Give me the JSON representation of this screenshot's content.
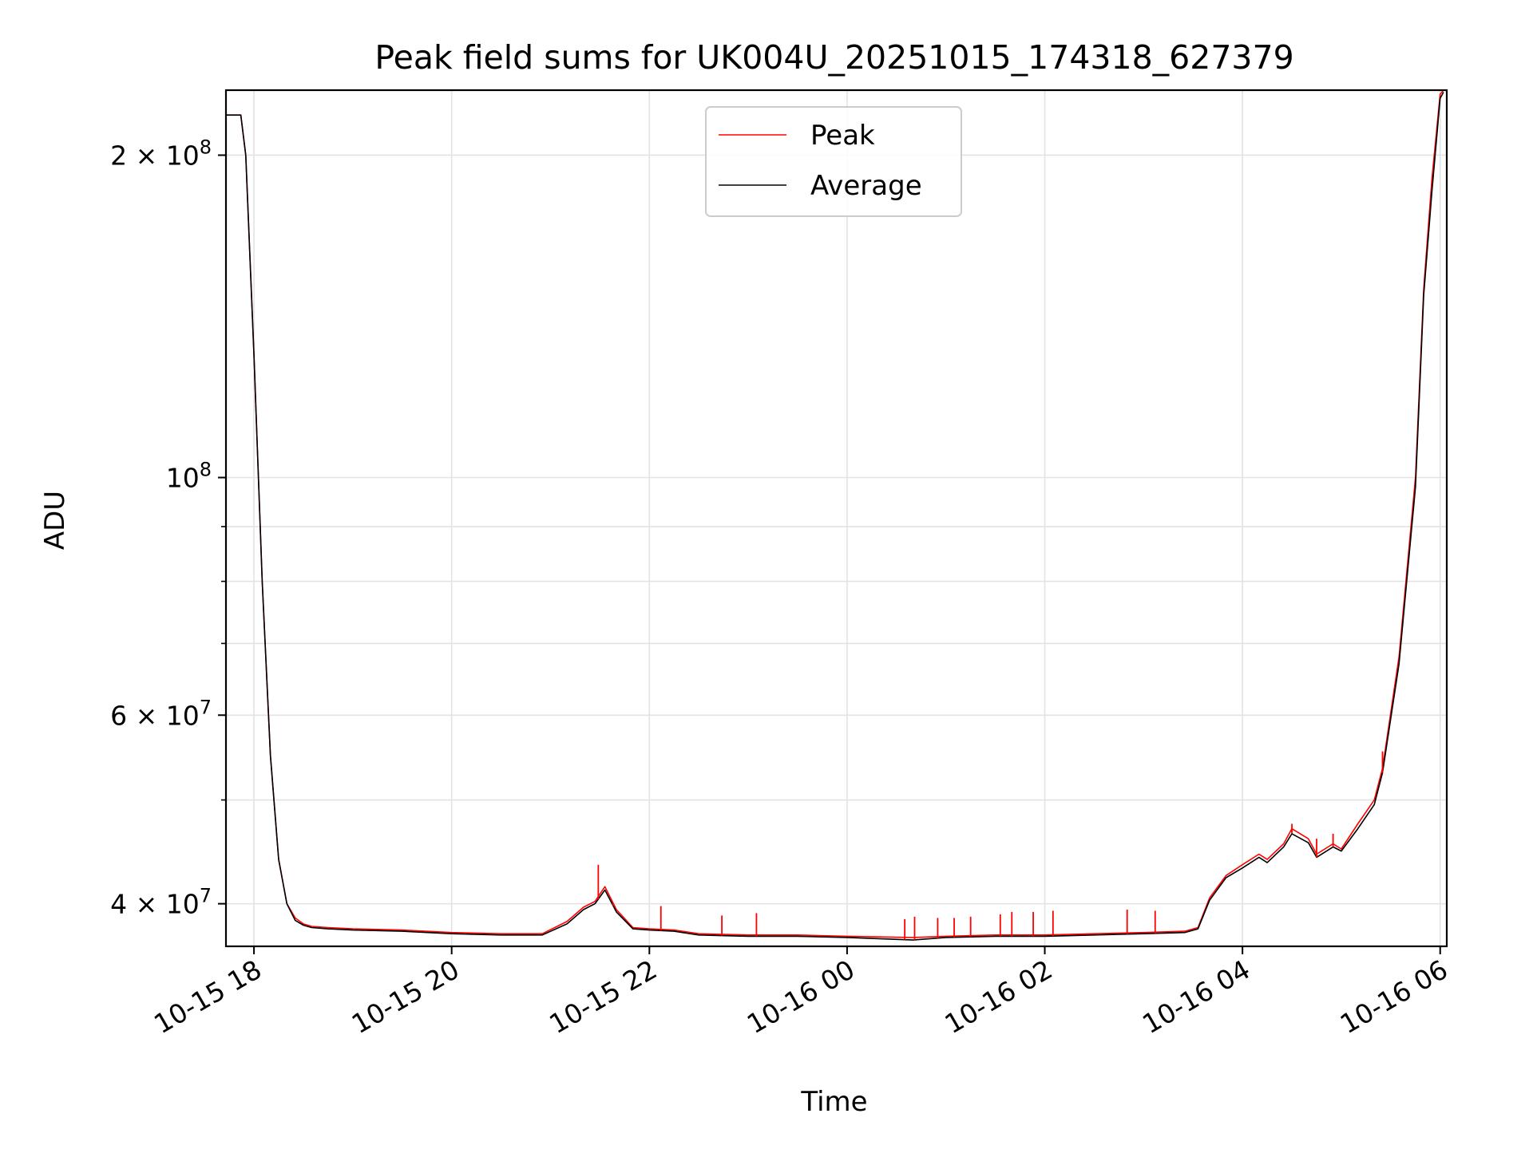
{
  "chart_data": {
    "type": "line",
    "title": "Peak field sums for UK004U_20251015_174318_627379",
    "xlabel": "Time",
    "ylabel": "ADU",
    "x_scale": "time",
    "y_scale": "log",
    "xlim": [
      "2025-10-15 17:43",
      "2025-10-16 06:04"
    ],
    "ylim": [
      36500000,
      230000000
    ],
    "x_ticks": [
      {
        "value": "2025-10-15 18:00",
        "label": "10-15 18"
      },
      {
        "value": "2025-10-15 20:00",
        "label": "10-15 20"
      },
      {
        "value": "2025-10-15 22:00",
        "label": "10-15 22"
      },
      {
        "value": "2025-10-16 00:00",
        "label": "10-16 00"
      },
      {
        "value": "2025-10-16 02:00",
        "label": "10-16 02"
      },
      {
        "value": "2025-10-16 04:00",
        "label": "10-16 04"
      },
      {
        "value": "2025-10-16 06:00",
        "label": "10-16 06"
      }
    ],
    "y_ticks": [
      {
        "value": 40000000,
        "base": "4",
        "exp": "7"
      },
      {
        "value": 60000000,
        "base": "6",
        "exp": "7"
      },
      {
        "value": 100000000,
        "base": "",
        "exp": "8"
      },
      {
        "value": 200000000,
        "base": "2",
        "exp": "8"
      }
    ],
    "y_minor_ticks": [
      50000000,
      70000000,
      80000000,
      90000000
    ],
    "grid": true,
    "legend": {
      "position": "upper center"
    },
    "series": [
      {
        "name": "Peak",
        "color": "#ff0000",
        "x": [
          "2025-10-15 17:43",
          "2025-10-15 17:52",
          "2025-10-15 17:55",
          "2025-10-15 18:00",
          "2025-10-15 18:05",
          "2025-10-15 18:10",
          "2025-10-15 18:15",
          "2025-10-15 18:20",
          "2025-10-15 18:25",
          "2025-10-15 18:30",
          "2025-10-15 18:35",
          "2025-10-15 18:45",
          "2025-10-15 19:00",
          "2025-10-15 19:30",
          "2025-10-15 20:00",
          "2025-10-15 20:30",
          "2025-10-15 20:55",
          "2025-10-15 21:10",
          "2025-10-15 21:20",
          "2025-10-15 21:27",
          "2025-10-15 21:33",
          "2025-10-15 21:40",
          "2025-10-15 21:50",
          "2025-10-15 22:00",
          "2025-10-15 22:15",
          "2025-10-15 22:30",
          "2025-10-15 23:00",
          "2025-10-15 23:30",
          "2025-10-16 00:00",
          "2025-10-16 00:40",
          "2025-10-16 01:00",
          "2025-10-16 01:30",
          "2025-10-16 02:00",
          "2025-10-16 02:30",
          "2025-10-16 03:00",
          "2025-10-16 03:25",
          "2025-10-16 03:33",
          "2025-10-16 03:40",
          "2025-10-16 03:50",
          "2025-10-16 04:00",
          "2025-10-16 04:10",
          "2025-10-16 04:15",
          "2025-10-16 04:25",
          "2025-10-16 04:30",
          "2025-10-16 04:40",
          "2025-10-16 04:45",
          "2025-10-16 04:55",
          "2025-10-16 05:00",
          "2025-10-16 05:10",
          "2025-10-16 05:20",
          "2025-10-16 05:25",
          "2025-10-16 05:35",
          "2025-10-16 05:45",
          "2025-10-16 05:50",
          "2025-10-16 05:55",
          "2025-10-16 06:00",
          "2025-10-16 06:02"
        ],
        "values": [
          218000000,
          218000000,
          200000000,
          130000000,
          80000000,
          55000000,
          44000000,
          40000000,
          38800000,
          38300000,
          38100000,
          38000000,
          37900000,
          37800000,
          37600000,
          37500000,
          37500000,
          38500000,
          39700000,
          40200000,
          41500000,
          39500000,
          38000000,
          37900000,
          37800000,
          37500000,
          37400000,
          37400000,
          37300000,
          37200000,
          37300000,
          37400000,
          37400000,
          37500000,
          37600000,
          37700000,
          38000000,
          40500000,
          42500000,
          43500000,
          44500000,
          44000000,
          45500000,
          47000000,
          46000000,
          44500000,
          45500000,
          45000000,
          47500000,
          50000000,
          53500000,
          68000000,
          100000000,
          150000000,
          190000000,
          228000000,
          230000000
        ],
        "spikes": [
          {
            "x": "2025-10-15 21:29",
            "y": 43500000
          },
          {
            "x": "2025-10-15 21:38",
            "y": 40000000
          },
          {
            "x": "2025-10-15 22:07",
            "y": 39800000
          },
          {
            "x": "2025-10-15 22:44",
            "y": 39000000
          },
          {
            "x": "2025-10-15 23:05",
            "y": 39200000
          },
          {
            "x": "2025-10-16 00:35",
            "y": 38700000
          },
          {
            "x": "2025-10-16 00:41",
            "y": 38900000
          },
          {
            "x": "2025-10-16 00:55",
            "y": 38800000
          },
          {
            "x": "2025-10-16 01:05",
            "y": 38800000
          },
          {
            "x": "2025-10-16 01:15",
            "y": 38900000
          },
          {
            "x": "2025-10-16 01:33",
            "y": 39100000
          },
          {
            "x": "2025-10-16 01:40",
            "y": 39300000
          },
          {
            "x": "2025-10-16 01:53",
            "y": 39300000
          },
          {
            "x": "2025-10-16 02:05",
            "y": 39400000
          },
          {
            "x": "2025-10-16 02:50",
            "y": 39500000
          },
          {
            "x": "2025-10-16 03:07",
            "y": 39400000
          },
          {
            "x": "2025-10-16 04:30",
            "y": 47500000
          },
          {
            "x": "2025-10-16 04:45",
            "y": 46000000
          },
          {
            "x": "2025-10-16 04:55",
            "y": 46500000
          },
          {
            "x": "2025-10-16 05:25",
            "y": 55500000
          }
        ]
      },
      {
        "name": "Average",
        "color": "#000000",
        "x": [
          "2025-10-15 17:43",
          "2025-10-15 17:52",
          "2025-10-15 17:55",
          "2025-10-15 18:00",
          "2025-10-15 18:05",
          "2025-10-15 18:10",
          "2025-10-15 18:15",
          "2025-10-15 18:20",
          "2025-10-15 18:25",
          "2025-10-15 18:30",
          "2025-10-15 18:35",
          "2025-10-15 18:45",
          "2025-10-15 19:00",
          "2025-10-15 19:30",
          "2025-10-15 20:00",
          "2025-10-15 20:30",
          "2025-10-15 20:55",
          "2025-10-15 21:10",
          "2025-10-15 21:20",
          "2025-10-15 21:27",
          "2025-10-15 21:33",
          "2025-10-15 21:40",
          "2025-10-15 21:50",
          "2025-10-15 22:00",
          "2025-10-15 22:15",
          "2025-10-15 22:30",
          "2025-10-15 23:00",
          "2025-10-15 23:30",
          "2025-10-16 00:00",
          "2025-10-16 00:40",
          "2025-10-16 01:00",
          "2025-10-16 01:30",
          "2025-10-16 02:00",
          "2025-10-16 02:30",
          "2025-10-16 03:00",
          "2025-10-16 03:25",
          "2025-10-16 03:33",
          "2025-10-16 03:40",
          "2025-10-16 03:50",
          "2025-10-16 04:00",
          "2025-10-16 04:10",
          "2025-10-16 04:15",
          "2025-10-16 04:25",
          "2025-10-16 04:30",
          "2025-10-16 04:40",
          "2025-10-16 04:45",
          "2025-10-16 04:55",
          "2025-10-16 05:00",
          "2025-10-16 05:10",
          "2025-10-16 05:20",
          "2025-10-16 05:25",
          "2025-10-16 05:35",
          "2025-10-16 05:45",
          "2025-10-16 05:50",
          "2025-10-16 05:55",
          "2025-10-16 06:00",
          "2025-10-16 06:02"
        ],
        "values": [
          218000000,
          218000000,
          200000000,
          130000000,
          80000000,
          55000000,
          44000000,
          40000000,
          38600000,
          38200000,
          38000000,
          37900000,
          37800000,
          37700000,
          37500000,
          37400000,
          37400000,
          38300000,
          39500000,
          40000000,
          41200000,
          39300000,
          37900000,
          37800000,
          37700000,
          37400000,
          37300000,
          37300000,
          37200000,
          37000000,
          37200000,
          37300000,
          37300000,
          37400000,
          37500000,
          37600000,
          37900000,
          40300000,
          42300000,
          43200000,
          44200000,
          43700000,
          45200000,
          46500000,
          45600000,
          44200000,
          45200000,
          44800000,
          47000000,
          49500000,
          53000000,
          67000000,
          98000000,
          148000000,
          185000000,
          226000000,
          229000000
        ]
      }
    ]
  }
}
